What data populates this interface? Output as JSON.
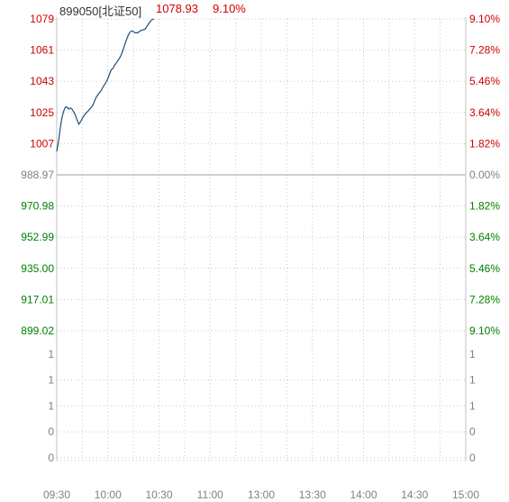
{
  "header": {
    "code_name": "899050[北证50]",
    "price": "1078.93",
    "change_pct": "9.10%"
  },
  "colors": {
    "up": "#cc0000",
    "down": "#008000",
    "neutral": "#808080",
    "line": "#1f4e79",
    "grid": "#c8c8c8"
  },
  "chart_data": {
    "type": "line",
    "base_price": 988.97,
    "ylim": [
      899.02,
      1078.93
    ],
    "left_ticks": [
      "1079",
      "1061",
      "1043",
      "1025",
      "1007",
      "988.97",
      "970.98",
      "952.99",
      "935.00",
      "917.01",
      "899.02"
    ],
    "left_tick_values": [
      1078.93,
      1060.94,
      1042.95,
      1024.96,
      1006.97,
      988.97,
      970.98,
      952.99,
      935.0,
      917.01,
      899.02
    ],
    "left_tick_kind": [
      "up",
      "up",
      "up",
      "up",
      "up",
      "neutral",
      "down",
      "down",
      "down",
      "down",
      "down"
    ],
    "right_ticks": [
      "9.10%",
      "7.28%",
      "5.46%",
      "3.64%",
      "1.82%",
      "0.00%",
      "1.82%",
      "3.64%",
      "5.46%",
      "7.28%",
      "9.10%"
    ],
    "volume_ticks": [
      "1",
      "1",
      "1",
      "0",
      "0"
    ],
    "time_labels": [
      "09:30",
      "10:00",
      "10:30",
      "11:00",
      "13:00",
      "13:30",
      "14:00",
      "14:30",
      "15:00"
    ],
    "series": [
      {
        "x": [
          0,
          1,
          2,
          3,
          4,
          5,
          6,
          7,
          8,
          9,
          10,
          11,
          12,
          13,
          14,
          15,
          16,
          17,
          18,
          19,
          20,
          21,
          22,
          23,
          24,
          25,
          26,
          27,
          28,
          29,
          30,
          31,
          32,
          33,
          34,
          35,
          36,
          37,
          38,
          39,
          40,
          41,
          42,
          43,
          44,
          45,
          46,
          47,
          48,
          49,
          50,
          51,
          52,
          53,
          54,
          55,
          56,
          57
        ],
        "y": [
          1002.5,
          1008.0,
          1015.5,
          1021.8,
          1025.6,
          1028.0,
          1028.2,
          1027.0,
          1027.6,
          1026.8,
          1025.2,
          1023.2,
          1020.5,
          1018.2,
          1019.6,
          1021.6,
          1023.2,
          1024.5,
          1025.3,
          1026.5,
          1027.5,
          1028.8,
          1031.0,
          1033.5,
          1035.0,
          1036.3,
          1037.6,
          1039.4,
          1041.0,
          1042.5,
          1044.6,
          1047.2,
          1049.6,
          1050.4,
          1052.3,
          1053.6,
          1055.0,
          1056.6,
          1058.6,
          1061.4,
          1064.5,
          1067.2,
          1069.6,
          1071.4,
          1072.0,
          1071.6,
          1071.0,
          1070.8,
          1071.3,
          1072.0,
          1072.5,
          1072.7,
          1073.2,
          1074.8,
          1076.3,
          1077.6,
          1078.5,
          1078.93
        ]
      }
    ],
    "grid": true
  }
}
